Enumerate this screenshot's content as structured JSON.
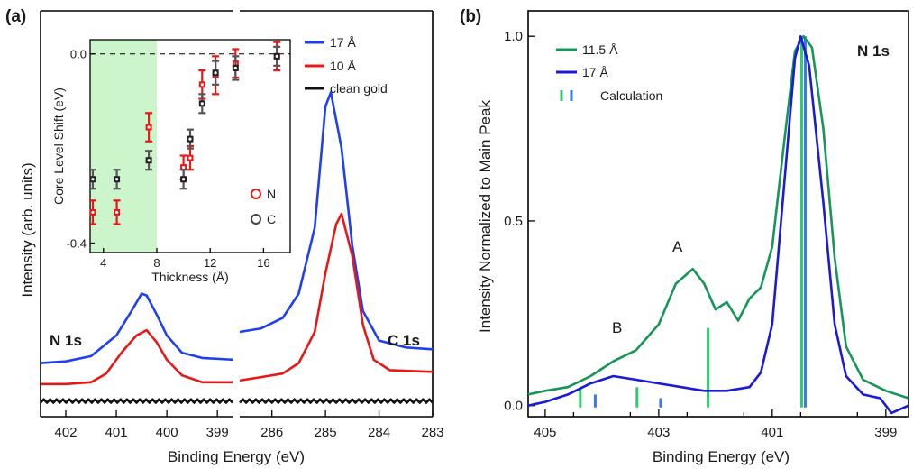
{
  "chart_data": [
    {
      "panel": "(a)",
      "type": "line",
      "xlabel": "Binding Energy (eV)",
      "ylabel": "Intensity (arb. units)",
      "x_break": true,
      "segments": [
        {
          "region_label": "N 1s",
          "xlim": [
            402.5,
            398.7
          ],
          "xticks": [
            "402",
            "401",
            "400",
            "399"
          ]
        },
        {
          "region_label": "C 1s",
          "xlim": [
            286.6,
            283.0
          ],
          "xticks": [
            "286",
            "285",
            "284",
            "283"
          ]
        }
      ],
      "legend": {
        "position": "top-right",
        "entries": [
          "17 Å",
          "10 Å",
          "clean gold"
        ]
      },
      "series": [
        {
          "name": "17 Å",
          "color": "#1f3ff0",
          "N1s": [
            [
              402.5,
              0.11
            ],
            [
              402.0,
              0.115
            ],
            [
              401.5,
              0.13
            ],
            [
              401.0,
              0.19
            ],
            [
              400.7,
              0.26
            ],
            [
              400.5,
              0.31
            ],
            [
              400.4,
              0.305
            ],
            [
              400.2,
              0.25
            ],
            [
              400.0,
              0.19
            ],
            [
              399.7,
              0.14
            ],
            [
              399.3,
              0.125
            ],
            [
              398.7,
              0.12
            ]
          ],
          "C1s": [
            [
              286.6,
              0.2
            ],
            [
              286.2,
              0.21
            ],
            [
              285.8,
              0.24
            ],
            [
              285.5,
              0.31
            ],
            [
              285.2,
              0.5
            ],
            [
              285.0,
              0.85
            ],
            [
              284.9,
              0.89
            ],
            [
              284.7,
              0.73
            ],
            [
              284.5,
              0.45
            ],
            [
              284.3,
              0.26
            ],
            [
              284.0,
              0.175
            ],
            [
              283.5,
              0.155
            ],
            [
              283.0,
              0.15
            ]
          ]
        },
        {
          "name": "10 Å",
          "color": "#e81818",
          "N1s": [
            [
              402.5,
              0.05
            ],
            [
              402.0,
              0.05
            ],
            [
              401.5,
              0.055
            ],
            [
              401.2,
              0.08
            ],
            [
              400.9,
              0.14
            ],
            [
              400.6,
              0.19
            ],
            [
              400.4,
              0.205
            ],
            [
              400.2,
              0.17
            ],
            [
              400.0,
              0.12
            ],
            [
              399.7,
              0.075
            ],
            [
              399.3,
              0.055
            ],
            [
              398.7,
              0.055
            ]
          ],
          "C1s": [
            [
              286.6,
              0.06
            ],
            [
              286.2,
              0.07
            ],
            [
              285.8,
              0.08
            ],
            [
              285.5,
              0.11
            ],
            [
              285.2,
              0.2
            ],
            [
              285.0,
              0.37
            ],
            [
              284.8,
              0.51
            ],
            [
              284.7,
              0.54
            ],
            [
              284.5,
              0.42
            ],
            [
              284.3,
              0.22
            ],
            [
              284.1,
              0.12
            ],
            [
              283.8,
              0.09
            ],
            [
              283.0,
              0.085
            ]
          ]
        },
        {
          "name": "clean gold",
          "color": "#111111",
          "N1s": [
            [
              402.5,
              0.0
            ],
            [
              398.7,
              0.0
            ]
          ],
          "C1s": [
            [
              286.6,
              0.0
            ],
            [
              283.0,
              0.0
            ]
          ]
        }
      ],
      "inset": {
        "type": "scatter",
        "xlabel": "Thickness (Å)",
        "ylabel": "Core Level Shift (eV)",
        "xlim": [
          3,
          18
        ],
        "ylim": [
          -0.42,
          0.03
        ],
        "xticks": [
          "4",
          "8",
          "12",
          "16"
        ],
        "yticks": [
          "0.0",
          "-0.4"
        ],
        "shaded_x_range": [
          3,
          8
        ],
        "legend": [
          "N",
          "C"
        ],
        "series": [
          {
            "name": "N",
            "color": "#e81818",
            "points": [
              [
                3.2,
                -0.335,
                0.025
              ],
              [
                5.0,
                -0.335,
                0.025
              ],
              [
                7.4,
                -0.155,
                0.03
              ],
              [
                10.0,
                -0.24,
                0.025
              ],
              [
                10.5,
                -0.22,
                0.025
              ],
              [
                11.4,
                -0.065,
                0.03
              ],
              [
                12.4,
                -0.045,
                0.04
              ],
              [
                13.9,
                -0.02,
                0.03
              ],
              [
                17.0,
                -0.005,
                0.03
              ]
            ]
          },
          {
            "name": "C",
            "color": "#444444",
            "points": [
              [
                3.2,
                -0.265,
                0.02
              ],
              [
                5.0,
                -0.265,
                0.02
              ],
              [
                7.4,
                -0.225,
                0.02
              ],
              [
                10.0,
                -0.265,
                0.02
              ],
              [
                10.5,
                -0.18,
                0.02
              ],
              [
                11.4,
                -0.105,
                0.02
              ],
              [
                12.4,
                -0.04,
                0.025
              ],
              [
                13.9,
                -0.03,
                0.025
              ],
              [
                17.0,
                -0.005,
                0.02
              ]
            ]
          }
        ]
      }
    },
    {
      "panel": "(b)",
      "type": "line",
      "title": "N 1s",
      "xlabel": "Binding Energy (eV)",
      "ylabel": "Intensity Normalized to Main Peak",
      "xlim": [
        405.3,
        398.6
      ],
      "ylim": [
        -0.03,
        1.02
      ],
      "xticks": [
        "405",
        "403",
        "401",
        "399"
      ],
      "yticks": [
        "0.0",
        "0.5",
        "1.0"
      ],
      "legend": {
        "position": "top-left",
        "entries": [
          "11.5 Å",
          "17 Å",
          "Calculation"
        ]
      },
      "annotations": [
        "A",
        "B"
      ],
      "series": [
        {
          "name": "11.5 Å",
          "color": "#17965a",
          "points": [
            [
              405.3,
              0.03
            ],
            [
              405.0,
              0.04
            ],
            [
              404.6,
              0.05
            ],
            [
              404.2,
              0.08
            ],
            [
              403.8,
              0.12
            ],
            [
              403.4,
              0.15
            ],
            [
              403.0,
              0.22
            ],
            [
              402.7,
              0.33
            ],
            [
              402.4,
              0.37
            ],
            [
              402.2,
              0.33
            ],
            [
              402.0,
              0.26
            ],
            [
              401.8,
              0.28
            ],
            [
              401.6,
              0.23
            ],
            [
              401.4,
              0.29
            ],
            [
              401.2,
              0.32
            ],
            [
              401.0,
              0.43
            ],
            [
              400.8,
              0.7
            ],
            [
              400.6,
              0.96
            ],
            [
              400.45,
              1.0
            ],
            [
              400.3,
              0.97
            ],
            [
              400.1,
              0.75
            ],
            [
              399.9,
              0.4
            ],
            [
              399.7,
              0.16
            ],
            [
              399.4,
              0.07
            ],
            [
              399.0,
              0.04
            ],
            [
              398.6,
              0.02
            ]
          ]
        },
        {
          "name": "17 Å",
          "color": "#1a1ad8",
          "points": [
            [
              405.3,
              0.0
            ],
            [
              405.0,
              0.01
            ],
            [
              404.6,
              0.03
            ],
            [
              404.2,
              0.06
            ],
            [
              403.8,
              0.08
            ],
            [
              403.4,
              0.07
            ],
            [
              403.0,
              0.06
            ],
            [
              402.6,
              0.05
            ],
            [
              402.2,
              0.04
            ],
            [
              401.8,
              0.04
            ],
            [
              401.4,
              0.05
            ],
            [
              401.2,
              0.09
            ],
            [
              401.0,
              0.22
            ],
            [
              400.8,
              0.58
            ],
            [
              400.6,
              0.94
            ],
            [
              400.5,
              1.0
            ],
            [
              400.35,
              0.92
            ],
            [
              400.1,
              0.55
            ],
            [
              399.9,
              0.22
            ],
            [
              399.7,
              0.08
            ],
            [
              399.4,
              0.03
            ],
            [
              399.1,
              0.02
            ],
            [
              398.9,
              -0.02
            ],
            [
              398.6,
              0.0
            ]
          ]
        }
      ],
      "calculation_sticks": [
        {
          "series": "11.5 Å",
          "color": "#2ecc71",
          "lines": [
            [
              404.35,
              0.05
            ],
            [
              403.35,
              0.05
            ],
            [
              402.1,
              0.21
            ],
            [
              400.45,
              1.0
            ]
          ]
        },
        {
          "series": "17 Å",
          "color": "#3a78f0",
          "lines": [
            [
              404.15,
              0.03
            ],
            [
              403.0,
              0.02
            ],
            [
              400.45,
              1.0
            ]
          ]
        }
      ]
    }
  ]
}
